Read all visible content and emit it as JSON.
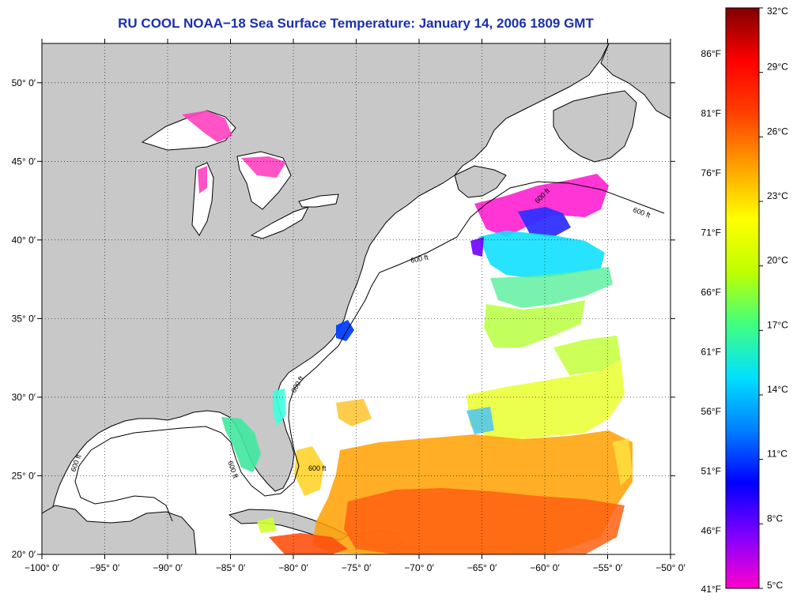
{
  "title": "RU COOL  NOAA−18  Sea Surface Temperature:  January 14, 2006 1809 GMT",
  "map": {
    "lon_range": [
      -100,
      -50
    ],
    "lat_range": [
      20,
      52.5
    ],
    "lon_ticks": [
      "−100° 0′",
      "−95° 0′",
      "−90° 0′",
      "−85° 0′",
      "−80° 0′",
      "−75° 0′",
      "−70° 0′",
      "−65° 0′",
      "−60° 0′",
      "−55° 0′",
      "−50° 0′"
    ],
    "lat_ticks": [
      "20° 0′",
      "25° 0′",
      "30° 0′",
      "35° 0′",
      "40° 0′",
      "45° 0′",
      "50° 0′"
    ],
    "isobath_label": "600 ft",
    "land_color": "#c8c8c8",
    "grid": "dotted"
  },
  "colorbar": {
    "celsius_labels": [
      "32°C",
      "29°C",
      "26°C",
      "23°C",
      "20°C",
      "17°C",
      "14°C",
      "11°C",
      "8°C",
      "5°C"
    ],
    "fahrenheit_labels": [
      "86°F",
      "81°F",
      "76°F",
      "71°F",
      "66°F",
      "61°F",
      "56°F",
      "51°F",
      "46°F",
      "41°F"
    ],
    "colors": [
      "#ff00cc",
      "#8000ff",
      "#0000ff",
      "#0080ff",
      "#00e0ff",
      "#40ff80",
      "#c0ff00",
      "#ffff00",
      "#ffa000",
      "#ff4000",
      "#ff0000",
      "#800000"
    ]
  }
}
